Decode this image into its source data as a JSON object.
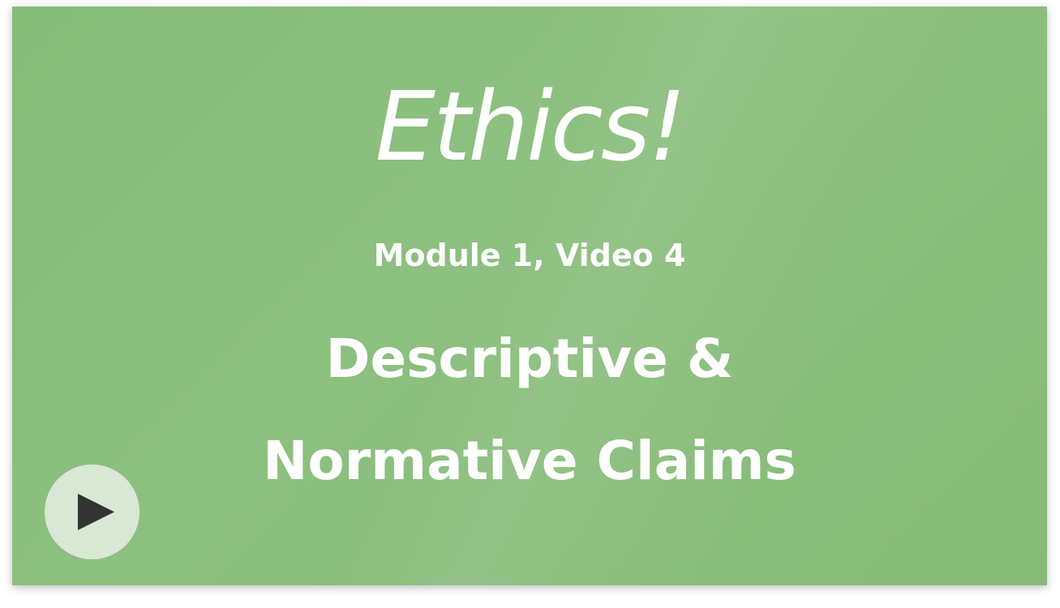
{
  "slide": {
    "title": "Ethics!",
    "subtitle": "Module 1, Video 4",
    "topic_line1": "Descriptive &",
    "topic_line2": "Normative Claims"
  },
  "player": {
    "play_icon": "play-icon"
  },
  "colors": {
    "background": "#89be7b",
    "text": "#ffffff",
    "play_button_bg": "#d9e8d4",
    "play_icon": "#333333"
  }
}
